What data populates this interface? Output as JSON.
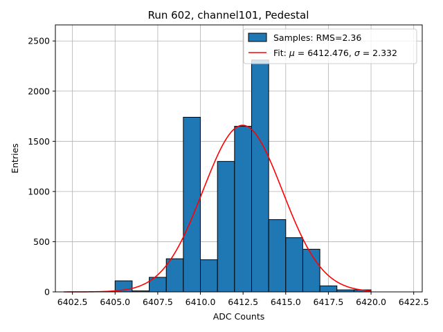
{
  "chart_data": {
    "type": "bar",
    "title": "Run 602, channel101, Pedestal",
    "xlabel": "ADC Counts",
    "ylabel": "Entries",
    "xlim": [
      6401.5,
      6423.0
    ],
    "ylim": [
      0,
      2660
    ],
    "grid": true,
    "legend_position": "top-right",
    "x_ticks": [
      6402.5,
      6405.0,
      6407.5,
      6410.0,
      6412.5,
      6415.0,
      6417.5,
      6420.0,
      6422.5
    ],
    "x_tick_labels": [
      "6402.5",
      "6405.0",
      "6407.5",
      "6410.0",
      "6412.5",
      "6415.0",
      "6417.5",
      "6420.0",
      "6422.5"
    ],
    "y_ticks": [
      0,
      500,
      1000,
      1500,
      2000,
      2500
    ],
    "y_tick_labels": [
      "0",
      "500",
      "1000",
      "1500",
      "2000",
      "2500"
    ],
    "bin_width": 1.0,
    "bins": [
      {
        "left": 6405.0,
        "value": 110
      },
      {
        "left": 6406.0,
        "value": 10
      },
      {
        "left": 6407.0,
        "value": 145
      },
      {
        "left": 6408.0,
        "value": 330
      },
      {
        "left": 6409.0,
        "value": 1740
      },
      {
        "left": 6410.0,
        "value": 320
      },
      {
        "left": 6411.0,
        "value": 1300
      },
      {
        "left": 6412.0,
        "value": 1650
      },
      {
        "left": 6413.0,
        "value": 2310
      },
      {
        "left": 6414.0,
        "value": 720
      },
      {
        "left": 6415.0,
        "value": 540
      },
      {
        "left": 6416.0,
        "value": 425
      },
      {
        "left": 6417.0,
        "value": 60
      },
      {
        "left": 6418.0,
        "value": 20
      },
      {
        "left": 6419.0,
        "value": 20
      }
    ],
    "series": [
      {
        "name": "Samples: RMS=2.36",
        "kind": "histogram",
        "color": "#1f77b4",
        "edge_color": "#000000"
      },
      {
        "name": "Fit: μ = 6412.476, σ = 2.332",
        "kind": "gaussian",
        "color": "#ff0000",
        "mu": 6412.476,
        "sigma": 2.332,
        "amplitude": 1660,
        "x_range": [
          6402.0,
          6420.0
        ]
      }
    ],
    "legend": {
      "samples_label": "Samples: RMS=2.36",
      "fit_prefix": "Fit: ",
      "mu_symbol": "μ",
      "mu_text": " = 6412.476, ",
      "sigma_symbol": "σ",
      "sigma_text": " = 2.332"
    }
  }
}
